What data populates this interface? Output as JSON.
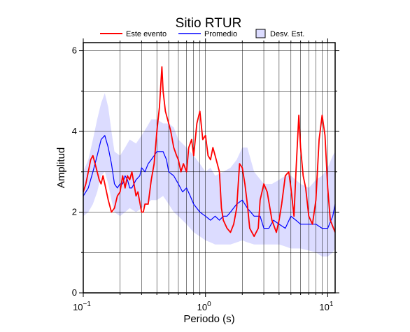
{
  "chart_data": {
    "type": "line",
    "title": "Sitio RTUR",
    "xlabel": "Periodo (s)",
    "ylabel": "Amplitud",
    "x_scale": "log",
    "xlim": [
      0.1,
      11.5
    ],
    "ylim": [
      0,
      6.2
    ],
    "grid": true,
    "legend_position": "top",
    "x_ticks": [
      {
        "value": 0.1,
        "base": "10",
        "exp": "−1"
      },
      {
        "value": 1,
        "base": "10",
        "exp": "0"
      },
      {
        "value": 10,
        "base": "10",
        "exp": "1"
      }
    ],
    "y_ticks": [
      {
        "value": 0,
        "label": "0"
      },
      {
        "value": 2,
        "label": "2"
      },
      {
        "value": 4,
        "label": "4"
      },
      {
        "value": 6,
        "label": "6"
      }
    ],
    "legend": [
      {
        "label": "Este evento",
        "kind": "line",
        "color": "#ff0000"
      },
      {
        "label": "Promedio",
        "kind": "line",
        "color": "#0000ff"
      },
      {
        "label": "Desv. Est.",
        "kind": "box",
        "color": "#dcdcff"
      }
    ],
    "series": [
      {
        "name": "Este evento",
        "color": "#ff0000",
        "x": [
          0.1,
          0.105,
          0.11,
          0.115,
          0.12,
          0.125,
          0.13,
          0.135,
          0.14,
          0.145,
          0.15,
          0.16,
          0.17,
          0.18,
          0.19,
          0.2,
          0.21,
          0.22,
          0.23,
          0.24,
          0.25,
          0.26,
          0.27,
          0.28,
          0.3,
          0.31,
          0.32,
          0.34,
          0.36,
          0.38,
          0.4,
          0.42,
          0.44,
          0.45,
          0.47,
          0.5,
          0.52,
          0.55,
          0.58,
          0.6,
          0.63,
          0.66,
          0.7,
          0.73,
          0.77,
          0.8,
          0.85,
          0.9,
          0.95,
          1.0,
          1.05,
          1.1,
          1.15,
          1.2,
          1.3,
          1.35,
          1.4,
          1.5,
          1.6,
          1.7,
          1.8,
          1.9,
          2.0,
          2.1,
          2.2,
          2.3,
          2.5,
          2.7,
          2.8,
          3.0,
          3.2,
          3.5,
          3.8,
          4.0,
          4.2,
          4.5,
          4.8,
          5.0,
          5.3,
          5.5,
          5.8,
          6.0,
          6.3,
          6.6,
          7.0,
          7.5,
          8.0,
          8.5,
          9.0,
          9.5,
          10.0,
          10.5,
          11.5
        ],
        "y": [
          2.5,
          2.7,
          3.0,
          3.3,
          3.4,
          3.2,
          3.0,
          2.8,
          2.7,
          2.9,
          2.7,
          2.3,
          2.0,
          2.1,
          2.4,
          2.5,
          2.9,
          2.6,
          2.9,
          2.8,
          3.0,
          2.7,
          2.4,
          2.5,
          2.0,
          2.0,
          2.2,
          2.2,
          2.8,
          3.2,
          4.0,
          4.6,
          5.6,
          5.0,
          4.5,
          4.2,
          4.0,
          3.6,
          3.4,
          3.3,
          3.0,
          3.2,
          3.0,
          3.6,
          3.8,
          3.4,
          4.2,
          4.5,
          3.8,
          3.9,
          3.4,
          3.3,
          3.6,
          3.4,
          3.0,
          2.1,
          1.8,
          1.6,
          1.5,
          1.7,
          2.1,
          3.2,
          3.1,
          2.7,
          2.2,
          1.6,
          1.4,
          1.6,
          2.3,
          2.7,
          2.5,
          1.8,
          1.5,
          1.8,
          2.2,
          2.9,
          3.0,
          2.6,
          1.9,
          3.0,
          4.4,
          3.6,
          2.9,
          2.6,
          1.9,
          1.7,
          2.3,
          3.8,
          4.4,
          3.9,
          2.6,
          1.8,
          1.5
        ]
      },
      {
        "name": "Promedio",
        "color": "#0000ff",
        "x": [
          0.1,
          0.11,
          0.12,
          0.13,
          0.14,
          0.15,
          0.16,
          0.17,
          0.18,
          0.19,
          0.2,
          0.21,
          0.22,
          0.23,
          0.24,
          0.25,
          0.27,
          0.29,
          0.3,
          0.32,
          0.34,
          0.36,
          0.38,
          0.4,
          0.42,
          0.45,
          0.48,
          0.5,
          0.55,
          0.6,
          0.65,
          0.7,
          0.75,
          0.8,
          0.9,
          1.0,
          1.1,
          1.2,
          1.3,
          1.4,
          1.5,
          1.6,
          1.8,
          2.0,
          2.2,
          2.5,
          2.8,
          3.0,
          3.3,
          3.6,
          4.0,
          4.5,
          5.0,
          5.5,
          6.0,
          7.0,
          8.0,
          9.0,
          10.0,
          11.0,
          11.5
        ],
        "y": [
          2.4,
          2.6,
          3.0,
          3.4,
          3.8,
          3.9,
          3.6,
          3.2,
          2.7,
          2.6,
          2.7,
          2.7,
          2.9,
          2.8,
          2.6,
          2.6,
          2.8,
          2.9,
          3.1,
          3.0,
          3.2,
          3.3,
          3.4,
          3.5,
          3.5,
          3.5,
          3.3,
          3.0,
          2.9,
          2.7,
          2.5,
          2.6,
          2.4,
          2.2,
          2.0,
          1.9,
          1.8,
          1.9,
          1.8,
          1.9,
          1.9,
          2.0,
          2.2,
          2.3,
          2.1,
          1.9,
          1.9,
          1.6,
          1.6,
          1.8,
          1.7,
          1.6,
          1.9,
          1.8,
          1.7,
          1.7,
          1.7,
          1.6,
          1.6,
          1.9,
          2.2
        ]
      }
    ],
    "band": {
      "name": "Desv. Est.",
      "color": "#dcdcff",
      "x": [
        0.1,
        0.11,
        0.12,
        0.13,
        0.14,
        0.15,
        0.16,
        0.17,
        0.18,
        0.2,
        0.22,
        0.24,
        0.27,
        0.3,
        0.33,
        0.36,
        0.4,
        0.45,
        0.5,
        0.55,
        0.6,
        0.7,
        0.8,
        0.9,
        1.0,
        1.1,
        1.2,
        1.4,
        1.6,
        1.8,
        2.0,
        2.2,
        2.5,
        3.0,
        3.5,
        4.0,
        4.5,
        5.0,
        6.0,
        7.0,
        8.0,
        9.0,
        10.0,
        11.0,
        11.5
      ],
      "upper": [
        3.0,
        3.3,
        3.8,
        4.3,
        4.7,
        4.95,
        4.6,
        4.0,
        3.5,
        3.4,
        3.6,
        3.8,
        3.7,
        3.9,
        4.1,
        4.3,
        4.3,
        4.2,
        4.2,
        4.1,
        3.8,
        3.6,
        3.4,
        3.2,
        3.0,
        3.1,
        2.9,
        3.0,
        3.1,
        3.3,
        3.6,
        3.6,
        3.0,
        2.7,
        2.7,
        2.8,
        2.9,
        2.9,
        2.7,
        2.6,
        2.8,
        2.9,
        3.1,
        3.4,
        3.5
      ],
      "lower": [
        1.9,
        2.0,
        2.2,
        2.5,
        2.9,
        3.0,
        2.7,
        2.3,
        2.0,
        1.9,
        2.0,
        2.1,
        2.0,
        2.1,
        2.2,
        2.3,
        2.3,
        2.4,
        2.2,
        2.0,
        1.9,
        1.7,
        1.5,
        1.4,
        1.3,
        1.25,
        1.2,
        1.2,
        1.2,
        1.25,
        1.3,
        1.25,
        1.2,
        1.2,
        1.2,
        1.2,
        1.15,
        1.1,
        1.1,
        1.05,
        1.0,
        0.9,
        0.9,
        1.0,
        1.1
      ]
    }
  }
}
